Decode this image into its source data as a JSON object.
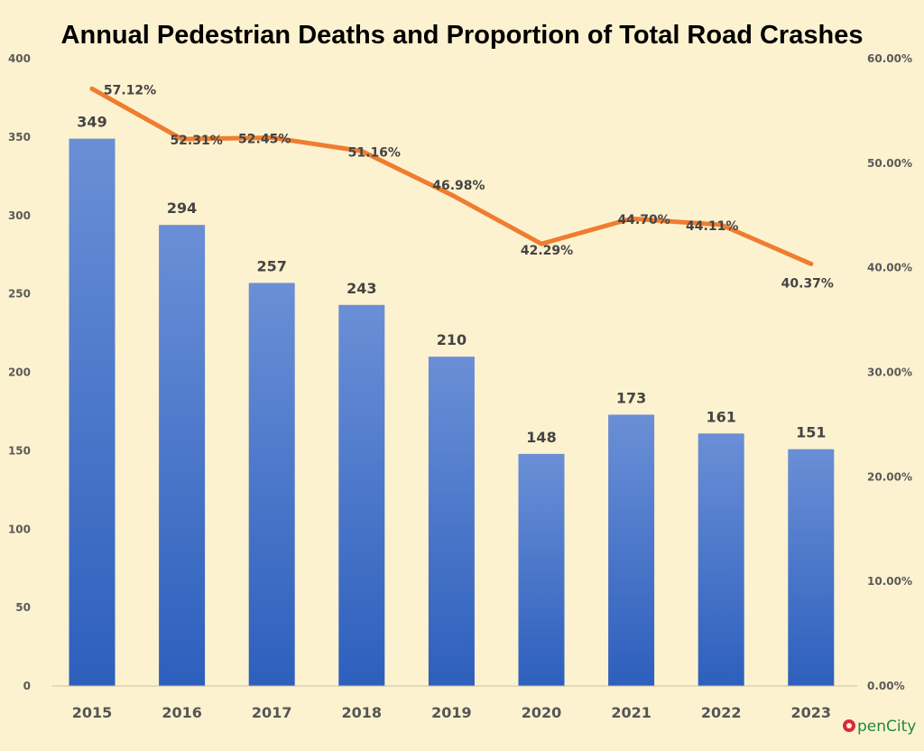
{
  "chart_data": {
    "type": "bar+line",
    "title": "Annual Pedestrian Deaths and Proportion of Total Road Crashes",
    "categories": [
      "2015",
      "2016",
      "2017",
      "2018",
      "2019",
      "2020",
      "2021",
      "2022",
      "2023"
    ],
    "series": [
      {
        "type": "bar",
        "axis": "left",
        "values": [
          349,
          294,
          257,
          243,
          210,
          148,
          173,
          161,
          151
        ],
        "labels": [
          "349",
          "294",
          "257",
          "243",
          "210",
          "148",
          "173",
          "161",
          "151"
        ]
      },
      {
        "type": "line",
        "axis": "right",
        "values": [
          57.12,
          52.31,
          52.45,
          51.16,
          46.98,
          42.29,
          44.7,
          44.11,
          40.37
        ],
        "labels": [
          "57.12%",
          "52.31%",
          "52.45%",
          "51.16%",
          "46.98%",
          "42.29%",
          "44.70%",
          "44.11%",
          "40.37%"
        ]
      }
    ],
    "y_left": {
      "range": [
        0,
        400
      ],
      "ticks": [
        "0",
        "50",
        "100",
        "150",
        "200",
        "250",
        "300",
        "350",
        "400"
      ]
    },
    "y_right": {
      "range": [
        0,
        60
      ],
      "ticks": [
        "0.00%",
        "10.00%",
        "20.00%",
        "30.00%",
        "40.00%",
        "50.00%",
        "60.00%"
      ]
    },
    "grid": false,
    "legend": "none",
    "colors": {
      "bar_top": "#6a8fd6",
      "bar_bottom": "#2d5fbd",
      "line": "#ef7d30",
      "background": "#fdf2cf"
    }
  },
  "logo": {
    "text_pre": "O",
    "text": "penCity"
  }
}
